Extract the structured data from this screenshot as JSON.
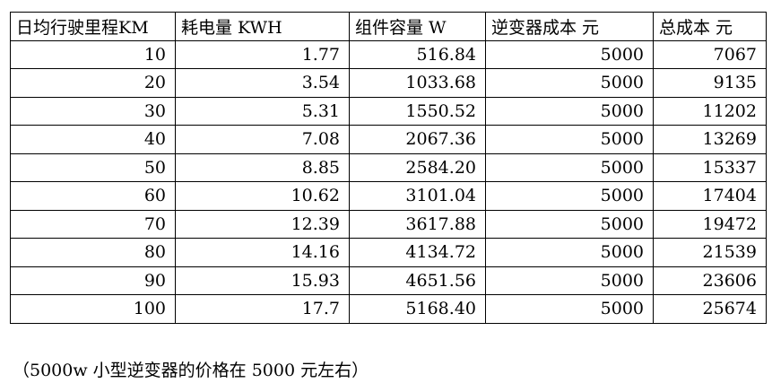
{
  "table": {
    "headers": [
      "日均行驶里程KM",
      "耗电量 KWH",
      "组件容量 W",
      "逆变器成本 元",
      "总成本 元"
    ],
    "rows": [
      [
        "10",
        "1.77",
        "516.84",
        "5000",
        "7067"
      ],
      [
        "20",
        "3.54",
        "1033.68",
        "5000",
        "9135"
      ],
      [
        "30",
        "5.31",
        "1550.52",
        "5000",
        "11202"
      ],
      [
        "40",
        "7.08",
        "2067.36",
        "5000",
        "13269"
      ],
      [
        "50",
        "8.85",
        "2584.20",
        "5000",
        "15337"
      ],
      [
        "60",
        "10.62",
        "3101.04",
        "5000",
        "17404"
      ],
      [
        "70",
        "12.39",
        "3617.88",
        "5000",
        "19472"
      ],
      [
        "80",
        "14.16",
        "4134.72",
        "5000",
        "21539"
      ],
      [
        "90",
        "15.93",
        "4651.56",
        "5000",
        "23606"
      ],
      [
        "100",
        "17.7",
        "5168.40",
        "5000",
        "25674"
      ]
    ]
  },
  "note": "（5000w 小型逆变器的价格在 5000 元左右）"
}
